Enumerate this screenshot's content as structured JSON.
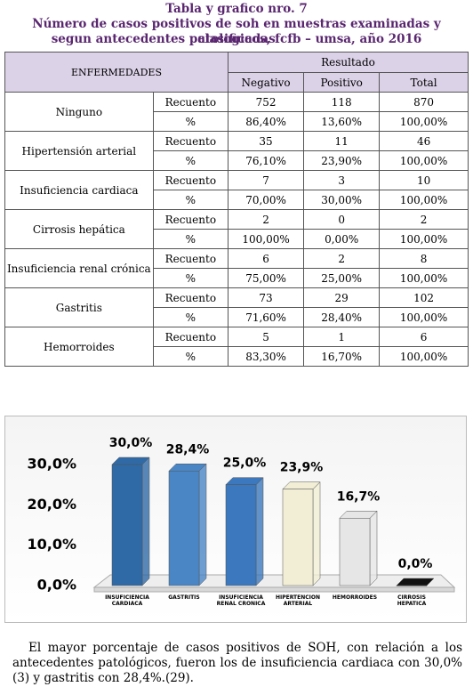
{
  "title": [
    "Tabla y grafico nro. 7",
    "Número de casos positivos de soh en muestras examinadas y clasificadas",
    "segun antecedentes patologicos, fcfb – umsa, año 2016"
  ],
  "table": {
    "header": {
      "disease": "ENFERMEDADES",
      "group": "Resultado",
      "columns": [
        "Negativo",
        "Positivo",
        "Total"
      ]
    },
    "rows": [
      {
        "disease": "Ninguno",
        "measures": [
          {
            "label": "Recuento",
            "values": [
              752,
              118,
              870
            ]
          },
          {
            "label": "%",
            "values": [
              "86,40%",
              "13,60%",
              "100,00%"
            ]
          }
        ]
      },
      {
        "disease": "Hipertensión arterial",
        "measures": [
          {
            "label": "Recuento",
            "values": [
              35,
              11,
              46
            ]
          },
          {
            "label": "%",
            "values": [
              "76,10%",
              "23,90%",
              "100,00%"
            ]
          }
        ]
      },
      {
        "disease": "Insuficiencia cardiaca",
        "measures": [
          {
            "label": "Recuento",
            "values": [
              7,
              3,
              10
            ]
          },
          {
            "label": "%",
            "values": [
              "70,00%",
              "30,00%",
              "100,00%"
            ]
          }
        ]
      },
      {
        "disease": "Cirrosis hepática",
        "measures": [
          {
            "label": "Recuento",
            "values": [
              2,
              0,
              2
            ]
          },
          {
            "label": "%",
            "values": [
              "100,00%",
              "0,00%",
              "100,00%"
            ]
          }
        ]
      },
      {
        "disease": "Insuficiencia renal crónica",
        "measures": [
          {
            "label": "Recuento",
            "values": [
              6,
              2,
              8
            ]
          },
          {
            "label": "%",
            "values": [
              "75,00%",
              "25,00%",
              "100,00%"
            ]
          }
        ]
      },
      {
        "disease": "Gastritis",
        "measures": [
          {
            "label": "Recuento",
            "values": [
              73,
              29,
              102
            ]
          },
          {
            "label": "%",
            "values": [
              "71,60%",
              "28,40%",
              "100,00%"
            ]
          }
        ]
      },
      {
        "disease": "Hemorroides",
        "measures": [
          {
            "label": "Recuento",
            "values": [
              5,
              1,
              6
            ]
          },
          {
            "label": "%",
            "values": [
              "83,30%",
              "16,70%",
              "100,00%"
            ]
          }
        ]
      }
    ]
  },
  "chart_data": {
    "type": "bar3d",
    "categories": [
      "INSUFICIENCIA\nCARDIACA",
      "GASTRITIS",
      "INSUFICIENCIA\nRENAL CRONICA",
      "HIPERTENCION\nARTERIAL",
      "HEMORROIDES",
      "CIRROSIS\nHEPATICA"
    ],
    "values": [
      30.0,
      28.4,
      25.0,
      23.9,
      16.7,
      0.0
    ],
    "value_labels": [
      "30,0%",
      "28,4%",
      "25,0%",
      "23,9%",
      "16,7%",
      "0,0%"
    ],
    "colors": [
      "#2f6aa6",
      "#4a86c6",
      "#3b78bd",
      "#f1eed5",
      "#e6e6e6",
      "#111111"
    ],
    "ylim": [
      0,
      30
    ],
    "yticks": [
      {
        "value": 0,
        "label": "0,0%"
      },
      {
        "value": 10,
        "label": "10,0%"
      },
      {
        "value": 20,
        "label": "20,0%"
      },
      {
        "value": 30,
        "label": "30,0%"
      }
    ]
  },
  "paragraph": "El mayor porcentaje de casos positivos de SOH, con relación a los antecedentes patológicos, fueron los de insuficiencia cardiaca con 30,0%(3) y gastritis con 28,4%.(29)."
}
